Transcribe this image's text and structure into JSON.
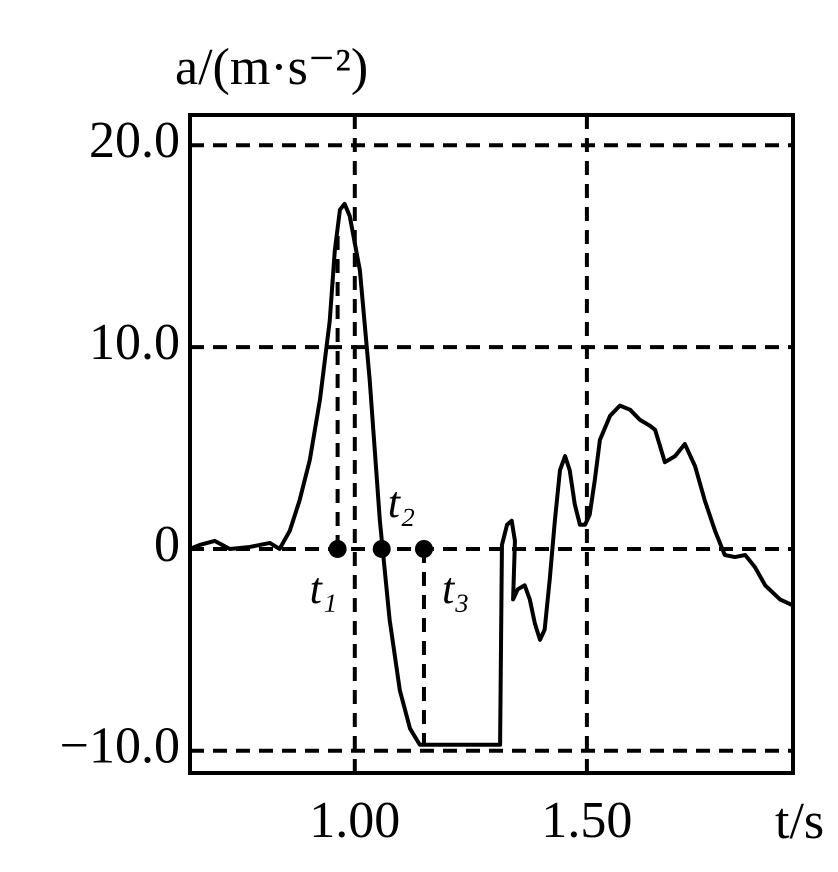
{
  "chart_data": {
    "type": "line",
    "y_label": "a/(m·s⁻²)",
    "x_label": "t/s",
    "xlim": [
      0.645,
      1.944
    ],
    "ylim": [
      -11.1,
      21.5
    ],
    "xticks": [
      {
        "value": 1.0,
        "label": "1.00"
      },
      {
        "value": 1.5,
        "label": "1.50"
      }
    ],
    "yticks": [
      {
        "value": 20,
        "label": "20.0"
      },
      {
        "value": 10,
        "label": "10.0"
      },
      0,
      {
        "value": -10,
        "label": "−10.0"
      }
    ],
    "grid": true,
    "series": [
      {
        "color": "#000000",
        "x": [
          0.645,
          0.666,
          0.698,
          0.731,
          0.774,
          0.817,
          0.838,
          0.86,
          0.881,
          0.903,
          0.925,
          0.946,
          0.957,
          0.968,
          0.978,
          0.989,
          1.011,
          1.032,
          1.054,
          1.075,
          1.097,
          1.119,
          1.14,
          1.313,
          1.317,
          1.328,
          1.338,
          1.345,
          1.341,
          1.351,
          1.366,
          1.377,
          1.388,
          1.399,
          1.409,
          1.42,
          1.431,
          1.442,
          1.453,
          1.463,
          1.474,
          1.485,
          1.496,
          1.506,
          1.517,
          1.528,
          1.55,
          1.571,
          1.593,
          1.614,
          1.636,
          1.647,
          1.668,
          1.69,
          1.711,
          1.733,
          1.754,
          1.776,
          1.797,
          1.819,
          1.841,
          1.862,
          1.884,
          1.916,
          1.944
        ],
        "values": [
          0,
          0.2,
          0.4,
          0,
          0.1,
          0.3,
          0,
          0.9,
          2.4,
          4.4,
          7.4,
          11.3,
          14.8,
          16.8,
          17.1,
          16.5,
          13.8,
          8.4,
          1.4,
          -3.5,
          -7.0,
          -8.9,
          -9.7,
          -9.7,
          0.2,
          1.2,
          1.4,
          0.4,
          -2.5,
          -2.0,
          -1.8,
          -2.5,
          -3.7,
          -4.5,
          -4.0,
          -1.5,
          1.4,
          3.9,
          4.6,
          3.9,
          2.2,
          1.2,
          1.2,
          1.7,
          3.4,
          5.4,
          6.6,
          7.1,
          6.9,
          6.4,
          6.1,
          5.9,
          4.3,
          4.6,
          5.2,
          4.1,
          2.4,
          0.9,
          -0.3,
          -0.4,
          -0.3,
          -0.9,
          -1.8,
          -2.5,
          -2.8
        ]
      }
    ],
    "points": {
      "labels": [
        "t₁",
        "t₂",
        "t₃"
      ],
      "x": [
        0.963,
        1.058,
        1.149
      ],
      "values": [
        0,
        0,
        0
      ]
    }
  }
}
